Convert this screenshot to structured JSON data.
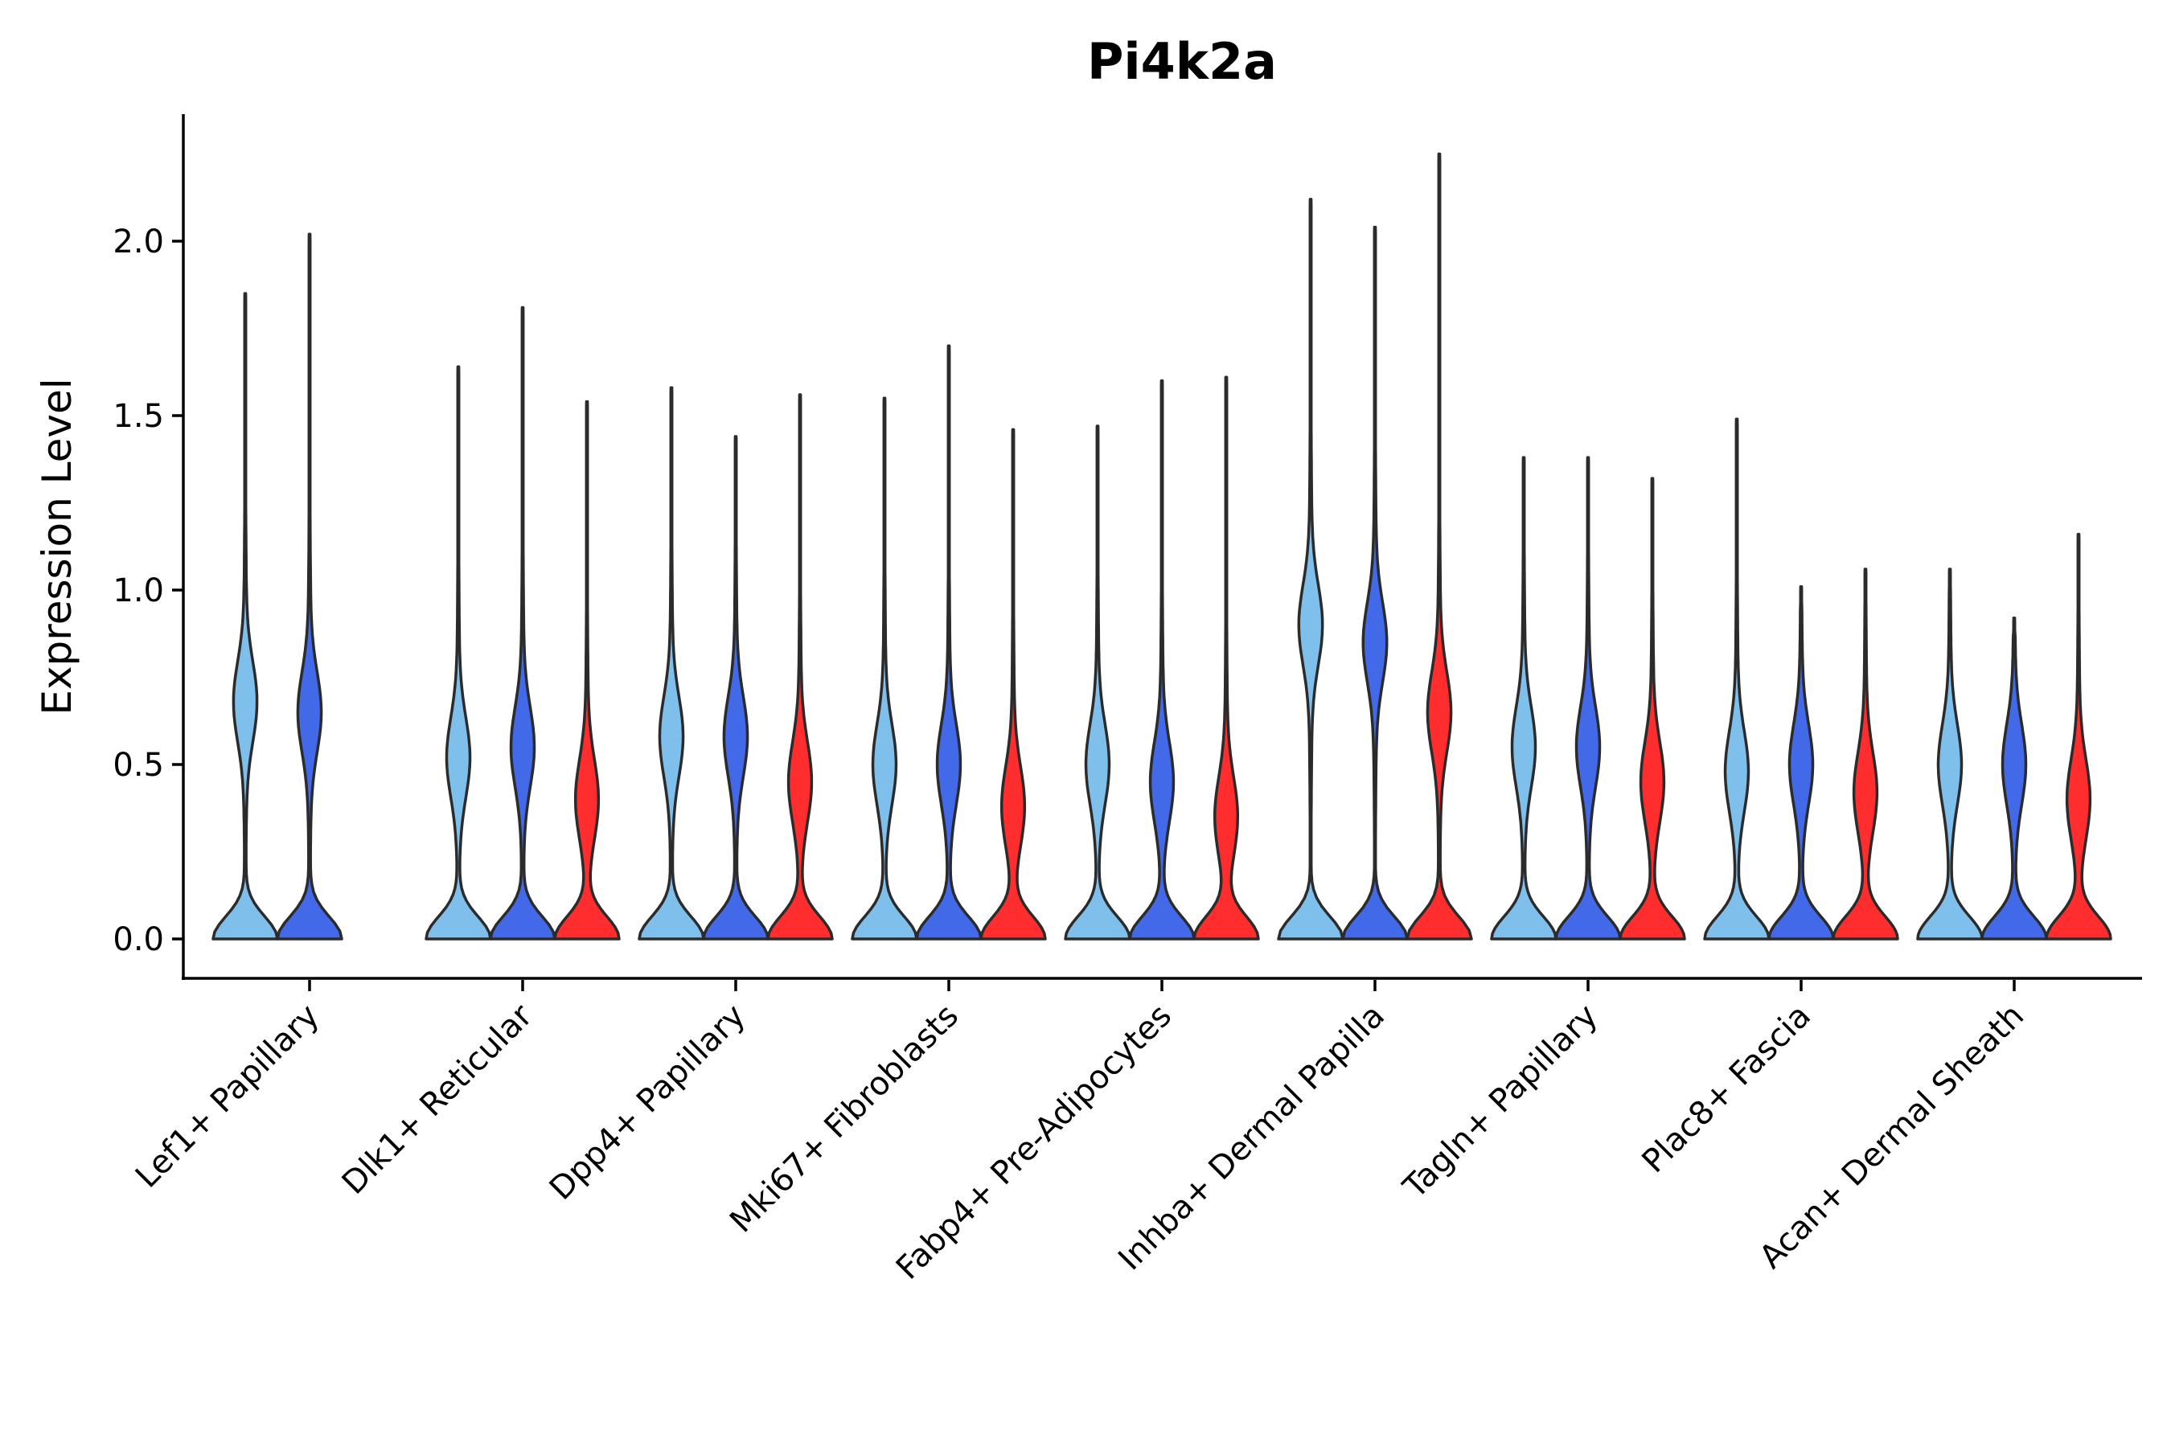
{
  "chart_data": {
    "type": "violin",
    "title": "Pi4k2a",
    "xlabel": "",
    "ylabel": "Expression Level",
    "ylim": [
      -0.11,
      2.37
    ],
    "yticks": [
      0.0,
      0.5,
      1.0,
      1.5,
      2.0
    ],
    "ytick_labels": [
      "0.0",
      "0.5",
      "1.0",
      "1.5",
      "2.0"
    ],
    "grid": false,
    "legend": "none",
    "series_colors": [
      "#7fbfec",
      "#4169e8",
      "#ff2d2d"
    ],
    "categories": [
      "Lef1+ Papillary",
      "Dlk1+ Reticular",
      "Dpp4+ Papillary",
      "Mki67+ Fibroblasts",
      "Fabp4+ Pre-Adipocytes",
      "Inhba+ Dermal Papilla",
      "Tagln+ Papillary",
      "Plac8+ Fascia",
      "Acan+ Dermal Sheath"
    ],
    "violins": [
      {
        "category": 0,
        "series": 0,
        "max": 1.85,
        "upper_mode": 0.68
      },
      {
        "category": 0,
        "series": 1,
        "max": 2.02,
        "upper_mode": 0.65
      },
      {
        "category": 1,
        "series": 0,
        "max": 1.64,
        "upper_mode": 0.52
      },
      {
        "category": 1,
        "series": 1,
        "max": 1.81,
        "upper_mode": 0.55
      },
      {
        "category": 1,
        "series": 2,
        "max": 1.54,
        "upper_mode": 0.4
      },
      {
        "category": 2,
        "series": 0,
        "max": 1.58,
        "upper_mode": 0.58
      },
      {
        "category": 2,
        "series": 1,
        "max": 1.44,
        "upper_mode": 0.58
      },
      {
        "category": 2,
        "series": 2,
        "max": 1.56,
        "upper_mode": 0.45
      },
      {
        "category": 3,
        "series": 0,
        "max": 1.55,
        "upper_mode": 0.5
      },
      {
        "category": 3,
        "series": 1,
        "max": 1.7,
        "upper_mode": 0.5
      },
      {
        "category": 3,
        "series": 2,
        "max": 1.46,
        "upper_mode": 0.38
      },
      {
        "category": 4,
        "series": 0,
        "max": 1.47,
        "upper_mode": 0.5
      },
      {
        "category": 4,
        "series": 1,
        "max": 1.6,
        "upper_mode": 0.45
      },
      {
        "category": 4,
        "series": 2,
        "max": 1.61,
        "upper_mode": 0.35
      },
      {
        "category": 5,
        "series": 0,
        "max": 2.12,
        "upper_mode": 0.9
      },
      {
        "category": 5,
        "series": 1,
        "max": 2.04,
        "upper_mode": 0.85
      },
      {
        "category": 5,
        "series": 2,
        "max": 2.25,
        "upper_mode": 0.65
      },
      {
        "category": 6,
        "series": 0,
        "max": 1.38,
        "upper_mode": 0.55
      },
      {
        "category": 6,
        "series": 1,
        "max": 1.38,
        "upper_mode": 0.55
      },
      {
        "category": 6,
        "series": 2,
        "max": 1.32,
        "upper_mode": 0.45
      },
      {
        "category": 7,
        "series": 0,
        "max": 1.49,
        "upper_mode": 0.48
      },
      {
        "category": 7,
        "series": 1,
        "max": 1.01,
        "upper_mode": 0.5
      },
      {
        "category": 7,
        "series": 2,
        "max": 1.06,
        "upper_mode": 0.42
      },
      {
        "category": 8,
        "series": 0,
        "max": 1.06,
        "upper_mode": 0.5
      },
      {
        "category": 8,
        "series": 1,
        "max": 0.92,
        "upper_mode": 0.5
      },
      {
        "category": 8,
        "series": 2,
        "max": 1.16,
        "upper_mode": 0.4
      }
    ]
  }
}
